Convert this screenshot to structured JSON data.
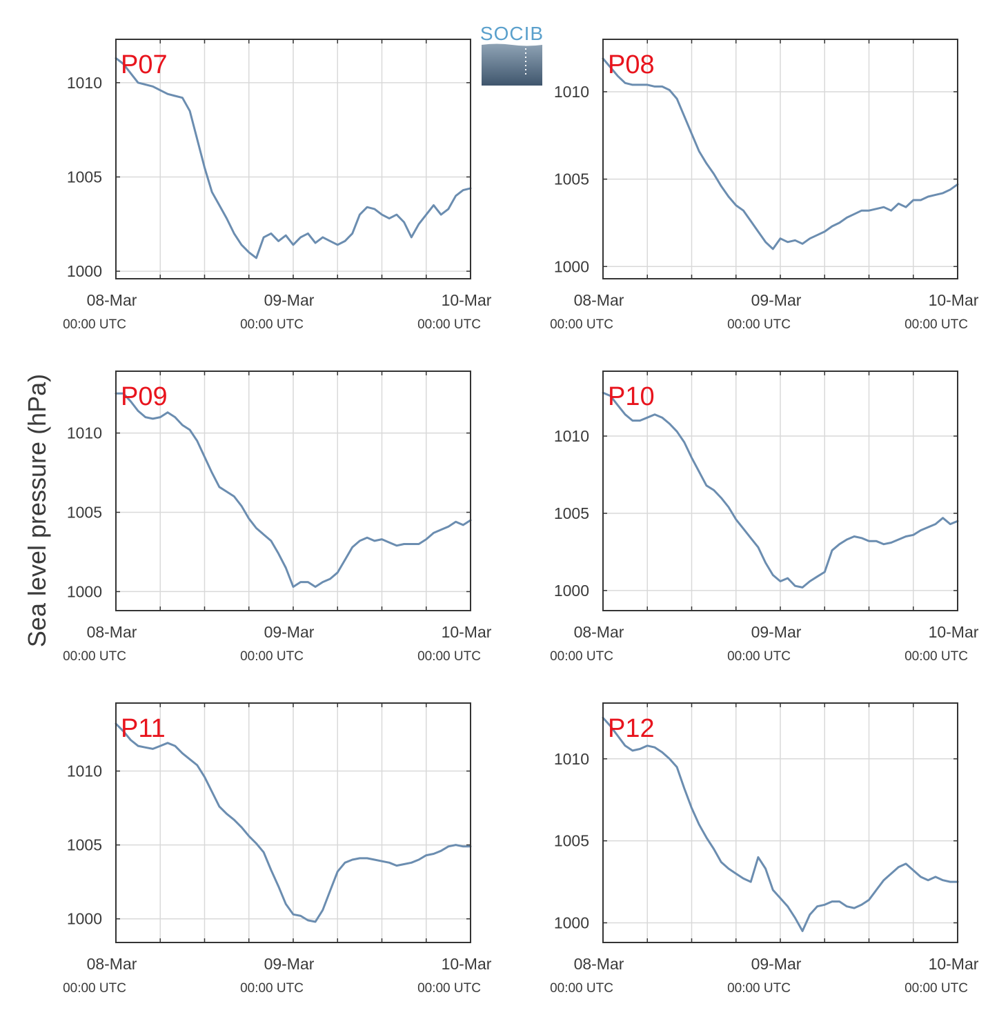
{
  "figure": {
    "ylabel": "Sea level pressure (hPa)",
    "logo_text": "SOCIB",
    "colors": {
      "series": "#6b8db0",
      "panel_label": "#e8141d",
      "grid": "#d9d9d9",
      "axis": "#333333",
      "text": "#3a3a3a"
    },
    "x_tick_labels": [
      {
        "day": "08-Mar",
        "time": "00:00 UTC"
      },
      {
        "day": "09-Mar",
        "time": "00:00 UTC"
      },
      {
        "day": "10-Mar",
        "time": "00:00 UTC"
      }
    ]
  },
  "chart_data": [
    {
      "type": "line",
      "title": "P07",
      "xlabel": "",
      "ylabel": "Sea level pressure (hPa)",
      "x_units": "hours since 08-Mar 00:00 UTC",
      "xlim": [
        0,
        48
      ],
      "ylim": [
        999.6,
        1012.3
      ],
      "yticks": [
        1000,
        1005,
        1010
      ],
      "grid": true,
      "x": [
        0,
        1,
        2,
        3,
        4,
        5,
        6,
        7,
        8,
        9,
        10,
        11,
        12,
        13,
        14,
        15,
        16,
        17,
        18,
        19,
        20,
        21,
        22,
        23,
        24,
        25,
        26,
        27,
        28,
        29,
        30,
        31,
        32,
        33,
        34,
        35,
        36,
        37,
        38,
        39,
        40,
        41,
        42,
        43,
        44,
        45,
        46,
        47,
        48
      ],
      "values": [
        1011.3,
        1011.0,
        1010.5,
        1010.0,
        1009.9,
        1009.8,
        1009.6,
        1009.4,
        1009.3,
        1009.2,
        1008.5,
        1007.0,
        1005.5,
        1004.2,
        1003.5,
        1002.8,
        1002.0,
        1001.4,
        1001.0,
        1000.7,
        1001.8,
        1002.0,
        1001.6,
        1001.9,
        1001.4,
        1001.8,
        1002.0,
        1001.5,
        1001.8,
        1001.6,
        1001.4,
        1001.6,
        1002.0,
        1003.0,
        1003.4,
        1003.3,
        1003.0,
        1002.8,
        1003.0,
        1002.6,
        1001.8,
        1002.5,
        1003.0,
        1003.5,
        1003.0,
        1003.3,
        1004.0,
        1004.3,
        1004.4
      ]
    },
    {
      "type": "line",
      "title": "P08",
      "xlabel": "",
      "ylabel": "Sea level pressure (hPa)",
      "x_units": "hours since 08-Mar 00:00 UTC",
      "xlim": [
        0,
        48
      ],
      "ylim": [
        999.3,
        1013.0
      ],
      "yticks": [
        1000,
        1005,
        1010
      ],
      "grid": true,
      "x": [
        0,
        1,
        2,
        3,
        4,
        5,
        6,
        7,
        8,
        9,
        10,
        11,
        12,
        13,
        14,
        15,
        16,
        17,
        18,
        19,
        20,
        21,
        22,
        23,
        24,
        25,
        26,
        27,
        28,
        29,
        30,
        31,
        32,
        33,
        34,
        35,
        36,
        37,
        38,
        39,
        40,
        41,
        42,
        43,
        44,
        45,
        46,
        47,
        48
      ],
      "values": [
        1011.9,
        1011.4,
        1010.9,
        1010.5,
        1010.4,
        1010.4,
        1010.4,
        1010.3,
        1010.3,
        1010.1,
        1009.6,
        1008.6,
        1007.6,
        1006.6,
        1005.9,
        1005.3,
        1004.6,
        1004.0,
        1003.5,
        1003.2,
        1002.6,
        1002.0,
        1001.4,
        1001.0,
        1001.6,
        1001.4,
        1001.5,
        1001.3,
        1001.6,
        1001.8,
        1002.0,
        1002.3,
        1002.5,
        1002.8,
        1003.0,
        1003.2,
        1003.2,
        1003.3,
        1003.4,
        1003.2,
        1003.6,
        1003.4,
        1003.8,
        1003.8,
        1004.0,
        1004.1,
        1004.2,
        1004.4,
        1004.7
      ]
    },
    {
      "type": "line",
      "title": "P09",
      "xlabel": "",
      "ylabel": "Sea level pressure (hPa)",
      "x_units": "hours since 08-Mar 00:00 UTC",
      "xlim": [
        0,
        48
      ],
      "ylim": [
        998.8,
        1013.9
      ],
      "yticks": [
        1000,
        1005,
        1010
      ],
      "grid": true,
      "x": [
        0,
        1,
        2,
        3,
        4,
        5,
        6,
        7,
        8,
        9,
        10,
        11,
        12,
        13,
        14,
        15,
        16,
        17,
        18,
        19,
        20,
        21,
        22,
        23,
        24,
        25,
        26,
        27,
        28,
        29,
        30,
        31,
        32,
        33,
        34,
        35,
        36,
        37,
        38,
        39,
        40,
        41,
        42,
        43,
        44,
        45,
        46,
        47,
        48
      ],
      "values": [
        1012.5,
        1012.5,
        1012.0,
        1011.4,
        1011.0,
        1010.9,
        1011.0,
        1011.3,
        1011.0,
        1010.5,
        1010.2,
        1009.5,
        1008.5,
        1007.5,
        1006.6,
        1006.3,
        1006.0,
        1005.4,
        1004.6,
        1004.0,
        1003.6,
        1003.2,
        1002.4,
        1001.5,
        1000.3,
        1000.6,
        1000.6,
        1000.3,
        1000.6,
        1000.8,
        1001.2,
        1002.0,
        1002.8,
        1003.2,
        1003.4,
        1003.2,
        1003.3,
        1003.1,
        1002.9,
        1003.0,
        1003.0,
        1003.0,
        1003.3,
        1003.7,
        1003.9,
        1004.1,
        1004.4,
        1004.2,
        1004.5
      ]
    },
    {
      "type": "line",
      "title": "P10",
      "xlabel": "",
      "ylabel": "Sea level pressure (hPa)",
      "x_units": "hours since 08-Mar 00:00 UTC",
      "xlim": [
        0,
        48
      ],
      "ylim": [
        998.7,
        1014.2
      ],
      "yticks": [
        1000,
        1005,
        1010
      ],
      "grid": true,
      "x": [
        0,
        1,
        2,
        3,
        4,
        5,
        6,
        7,
        8,
        9,
        10,
        11,
        12,
        13,
        14,
        15,
        16,
        17,
        18,
        19,
        20,
        21,
        22,
        23,
        24,
        25,
        26,
        27,
        28,
        29,
        30,
        31,
        32,
        33,
        34,
        35,
        36,
        37,
        38,
        39,
        40,
        41,
        42,
        43,
        44,
        45,
        46,
        47,
        48
      ],
      "values": [
        1012.8,
        1012.6,
        1012.0,
        1011.4,
        1011.0,
        1011.0,
        1011.2,
        1011.4,
        1011.2,
        1010.8,
        1010.3,
        1009.6,
        1008.6,
        1007.7,
        1006.8,
        1006.5,
        1006.0,
        1005.4,
        1004.6,
        1004.0,
        1003.4,
        1002.8,
        1001.8,
        1001.0,
        1000.6,
        1000.8,
        1000.3,
        1000.2,
        1000.6,
        1000.9,
        1001.2,
        1002.6,
        1003.0,
        1003.3,
        1003.5,
        1003.4,
        1003.2,
        1003.2,
        1003.0,
        1003.1,
        1003.3,
        1003.5,
        1003.6,
        1003.9,
        1004.1,
        1004.3,
        1004.7,
        1004.3,
        1004.5
      ]
    },
    {
      "type": "line",
      "title": "P11",
      "xlabel": "",
      "ylabel": "Sea level pressure (hPa)",
      "x_units": "hours since 08-Mar 00:00 UTC",
      "xlim": [
        0,
        48
      ],
      "ylim": [
        998.4,
        1014.6
      ],
      "yticks": [
        1000,
        1005,
        1010
      ],
      "grid": true,
      "x": [
        0,
        1,
        2,
        3,
        4,
        5,
        6,
        7,
        8,
        9,
        10,
        11,
        12,
        13,
        14,
        15,
        16,
        17,
        18,
        19,
        20,
        21,
        22,
        23,
        24,
        25,
        26,
        27,
        28,
        29,
        30,
        31,
        32,
        33,
        34,
        35,
        36,
        37,
        38,
        39,
        40,
        41,
        42,
        43,
        44,
        45,
        46,
        47,
        48
      ],
      "values": [
        1013.2,
        1012.7,
        1012.1,
        1011.7,
        1011.6,
        1011.5,
        1011.7,
        1011.9,
        1011.7,
        1011.2,
        1010.8,
        1010.4,
        1009.6,
        1008.6,
        1007.6,
        1007.1,
        1006.7,
        1006.2,
        1005.6,
        1005.1,
        1004.5,
        1003.3,
        1002.2,
        1001.0,
        1000.3,
        1000.2,
        999.9,
        999.8,
        1000.6,
        1001.9,
        1003.2,
        1003.8,
        1004.0,
        1004.1,
        1004.1,
        1004.0,
        1003.9,
        1003.8,
        1003.6,
        1003.7,
        1003.8,
        1004.0,
        1004.3,
        1004.4,
        1004.6,
        1004.9,
        1005.0,
        1004.9,
        1004.9
      ]
    },
    {
      "type": "line",
      "title": "P12",
      "xlabel": "",
      "ylabel": "Sea level pressure (hPa)",
      "x_units": "hours since 08-Mar 00:00 UTC",
      "xlim": [
        0,
        48
      ],
      "ylim": [
        998.8,
        1013.4
      ],
      "yticks": [
        1000,
        1005,
        1010
      ],
      "grid": true,
      "x": [
        0,
        1,
        2,
        3,
        4,
        5,
        6,
        7,
        8,
        9,
        10,
        11,
        12,
        13,
        14,
        15,
        16,
        17,
        18,
        19,
        20,
        21,
        22,
        23,
        24,
        25,
        26,
        27,
        28,
        29,
        30,
        31,
        32,
        33,
        34,
        35,
        36,
        37,
        38,
        39,
        40,
        41,
        42,
        43,
        44,
        45,
        46,
        47,
        48
      ],
      "values": [
        1012.5,
        1012.0,
        1011.4,
        1010.8,
        1010.5,
        1010.6,
        1010.8,
        1010.7,
        1010.4,
        1010.0,
        1009.5,
        1008.2,
        1007.0,
        1006.0,
        1005.2,
        1004.5,
        1003.7,
        1003.3,
        1003.0,
        1002.7,
        1002.5,
        1004.0,
        1003.3,
        1002.0,
        1001.5,
        1001.0,
        1000.3,
        999.5,
        1000.5,
        1001.0,
        1001.1,
        1001.3,
        1001.3,
        1001.0,
        1000.9,
        1001.1,
        1001.4,
        1002.0,
        1002.6,
        1003.0,
        1003.4,
        1003.6,
        1003.2,
        1002.8,
        1002.6,
        1002.8,
        1002.6,
        1002.5,
        1002.5
      ]
    }
  ]
}
